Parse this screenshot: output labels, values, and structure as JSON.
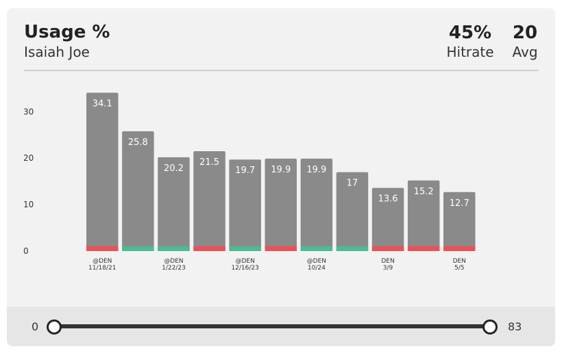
{
  "header": {
    "title": "Usage %",
    "subtitle": "Isaiah Joe",
    "hitrate_value": "45%",
    "hitrate_label": "Hitrate",
    "avg_value": "20",
    "avg_label": "Avg"
  },
  "slider": {
    "min_label": "0",
    "max_label": "83"
  },
  "colors": {
    "bar": "#8a8a8a",
    "over": "#4dba93",
    "under": "#ea5057",
    "text": "#333333"
  },
  "chart_data": {
    "type": "bar",
    "title": "Usage %",
    "subtitle": "Isaiah Joe",
    "ylim": [
      0,
      35
    ],
    "yticks": [
      0,
      10,
      20,
      30
    ],
    "values": [
      34.1,
      25.8,
      20.2,
      21.5,
      19.7,
      19.9,
      19.9,
      17,
      13.6,
      15.2,
      12.7
    ],
    "outcomes": [
      "under",
      "over",
      "over",
      "under",
      "over",
      "under",
      "over",
      "over",
      "under",
      "under",
      "under"
    ],
    "games": [
      {
        "opp": "@DEN",
        "date": "11/18/21"
      },
      null,
      {
        "opp": "@DEN",
        "date": "1/22/23"
      },
      null,
      {
        "opp": "@DEN",
        "date": "12/16/23"
      },
      null,
      {
        "opp": "@DEN",
        "date": "10/24"
      },
      null,
      {
        "opp": "DEN",
        "date": "3/9"
      },
      null,
      {
        "opp": "DEN",
        "date": "5/5"
      }
    ],
    "grid": false,
    "legend": "none"
  }
}
